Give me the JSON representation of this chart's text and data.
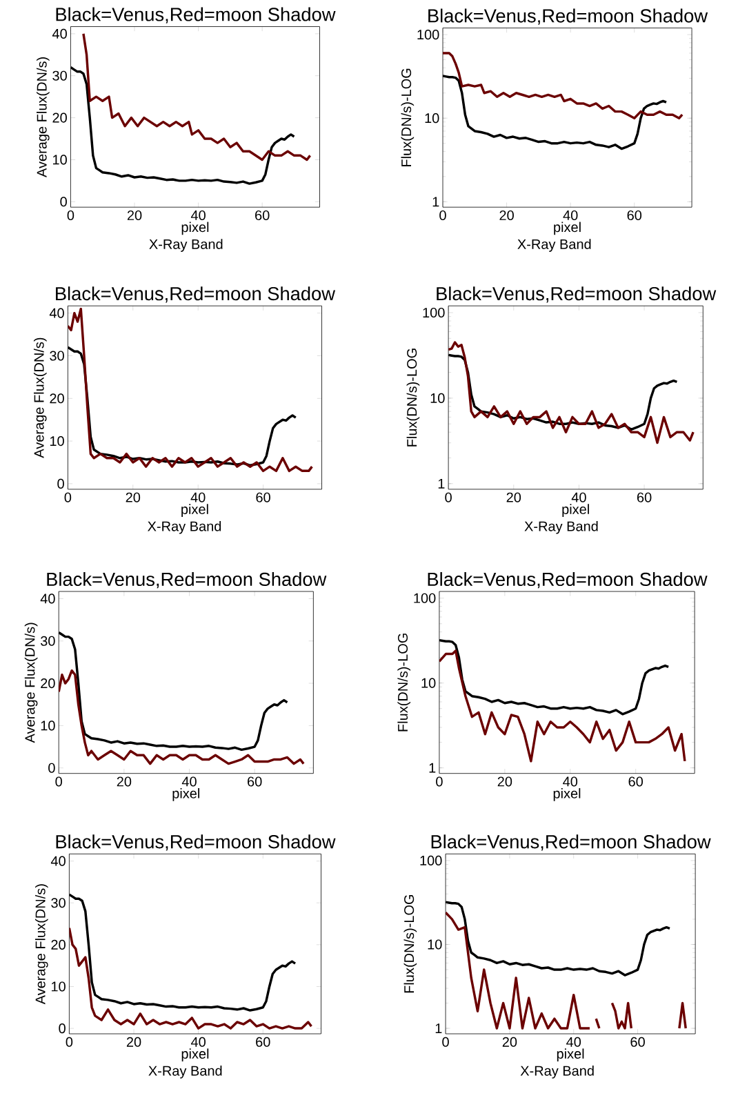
{
  "chart_data": [
    {
      "type": "line",
      "title": "Black=Venus,Red=moon Shadow",
      "xlabel": "pixel",
      "ylabel": "Average Flux(DN/s)",
      "annotations": [
        "X-Ray Band"
      ],
      "xlim": [
        0,
        78
      ],
      "ylim": [
        -1.3,
        41.7
      ],
      "xticks": [
        0,
        20,
        40,
        60
      ],
      "yticks": [
        0,
        10,
        20,
        30,
        40
      ],
      "series": [
        {
          "color": "#000000",
          "x": [
            0,
            1,
            2,
            3,
            4,
            5,
            6,
            7,
            8,
            9,
            10,
            12,
            14,
            16,
            18,
            20,
            22,
            24,
            26,
            28,
            30,
            32,
            34,
            36,
            38,
            40,
            42,
            44,
            46,
            48,
            50,
            52,
            54,
            56,
            58,
            60,
            61,
            62,
            63,
            64,
            65,
            66,
            67,
            68,
            69,
            70
          ],
          "values": [
            32,
            31.5,
            31,
            31,
            30.5,
            28,
            20,
            11,
            8,
            7.5,
            7,
            6.8,
            6.5,
            6,
            6.3,
            5.8,
            6,
            5.7,
            5.8,
            5.5,
            5.2,
            5.3,
            5,
            5,
            5.2,
            5,
            5.1,
            5,
            5.2,
            4.8,
            4.7,
            4.5,
            4.8,
            4.3,
            4.6,
            5,
            6.5,
            10,
            13,
            14,
            14.5,
            15,
            14.8,
            15.5,
            16,
            15.5
          ]
        },
        {
          "color": "#6b0000",
          "x": [
            4,
            5,
            6,
            8,
            10,
            12,
            13,
            15,
            17,
            19,
            21,
            23,
            25,
            27,
            29,
            31,
            33,
            35,
            37,
            38,
            40,
            42,
            44,
            46,
            48,
            50,
            52,
            54,
            56,
            58,
            60,
            62,
            64,
            66,
            68,
            70,
            72,
            74,
            75
          ],
          "values": [
            40,
            35,
            24,
            25,
            24,
            25,
            20,
            21,
            18,
            20,
            18,
            20,
            19,
            18,
            19,
            18,
            19,
            18,
            19,
            16,
            17,
            15,
            15,
            14,
            15,
            13,
            14,
            12,
            12,
            11,
            10,
            12,
            11,
            11,
            12,
            11,
            11,
            10,
            11
          ]
        }
      ]
    },
    {
      "type": "line",
      "title": "Black=Venus,Red=moon Shadow",
      "xlabel": "pixel",
      "ylabel": "Flux(DN/s)-LOG",
      "annotations": [
        "X-Ray Band"
      ],
      "log": true,
      "xlim": [
        0,
        78
      ],
      "ylim": [
        0.86,
        120
      ],
      "xticks": [
        0,
        20,
        40,
        60
      ],
      "yticks": [
        1,
        10,
        100
      ],
      "series": [
        {
          "color": "#000000",
          "x": [
            0,
            1,
            2,
            3,
            4,
            5,
            6,
            7,
            8,
            9,
            10,
            12,
            14,
            16,
            18,
            20,
            22,
            24,
            26,
            28,
            30,
            32,
            34,
            36,
            38,
            40,
            42,
            44,
            46,
            48,
            50,
            52,
            54,
            56,
            58,
            60,
            61,
            62,
            63,
            64,
            65,
            66,
            67,
            68,
            69,
            70
          ],
          "values": [
            32,
            31.5,
            31,
            31,
            30.5,
            28,
            20,
            11,
            8,
            7.5,
            7,
            6.8,
            6.5,
            6,
            6.3,
            5.8,
            6,
            5.7,
            5.8,
            5.5,
            5.2,
            5.3,
            5,
            5,
            5.2,
            5,
            5.1,
            5,
            5.2,
            4.8,
            4.7,
            4.5,
            4.8,
            4.3,
            4.6,
            5,
            6.5,
            10,
            13,
            14,
            14.5,
            15,
            14.8,
            15.5,
            16,
            15.5
          ]
        },
        {
          "color": "#6b0000",
          "x": [
            0,
            2,
            3,
            4,
            5,
            6,
            8,
            10,
            12,
            13,
            15,
            17,
            19,
            21,
            23,
            25,
            27,
            29,
            31,
            33,
            35,
            37,
            38,
            40,
            42,
            44,
            46,
            48,
            50,
            52,
            54,
            56,
            58,
            60,
            62,
            64,
            66,
            68,
            70,
            72,
            74,
            75
          ],
          "values": [
            60,
            60,
            55,
            45,
            35,
            24,
            25,
            24,
            25,
            20,
            21,
            18,
            20,
            18,
            20,
            19,
            18,
            19,
            18,
            19,
            18,
            19,
            16,
            17,
            15,
            15,
            14,
            15,
            13,
            14,
            12,
            12,
            11,
            10,
            12,
            11,
            11,
            12,
            11,
            11,
            10,
            11
          ]
        }
      ]
    },
    {
      "type": "line",
      "title": "Black=Venus,Red=moon Shadow",
      "xlabel": "pixel",
      "ylabel": "Average Flux(DN/s)",
      "annotations": [
        "X-Ray Band"
      ],
      "xlim": [
        0,
        78
      ],
      "ylim": [
        -1.3,
        41.7
      ],
      "xticks": [
        0,
        20,
        40,
        60
      ],
      "yticks": [
        0,
        10,
        20,
        30,
        40
      ],
      "series": [
        {
          "color": "#000000",
          "x": [
            0,
            1,
            2,
            3,
            4,
            5,
            6,
            7,
            8,
            9,
            10,
            12,
            14,
            16,
            18,
            20,
            22,
            24,
            26,
            28,
            30,
            32,
            34,
            36,
            38,
            40,
            42,
            44,
            46,
            48,
            50,
            52,
            54,
            56,
            58,
            60,
            61,
            62,
            63,
            64,
            65,
            66,
            67,
            68,
            69,
            70
          ],
          "values": [
            32,
            31.5,
            31,
            31,
            30.5,
            28,
            20,
            11,
            8,
            7.5,
            7,
            6.8,
            6.5,
            6,
            6.3,
            5.8,
            6,
            5.7,
            5.8,
            5.5,
            5.2,
            5.3,
            5,
            5,
            5.2,
            5,
            5.1,
            5,
            5.2,
            4.8,
            4.7,
            4.5,
            4.8,
            4.3,
            4.6,
            5,
            6.5,
            10,
            13,
            14,
            14.5,
            15,
            14.8,
            15.5,
            16,
            15.5
          ]
        },
        {
          "color": "#6b0000",
          "x": [
            0,
            1,
            2,
            3,
            4,
            5,
            6,
            7,
            8,
            10,
            12,
            14,
            16,
            18,
            20,
            22,
            24,
            26,
            28,
            30,
            32,
            34,
            36,
            38,
            40,
            42,
            44,
            46,
            48,
            50,
            52,
            54,
            56,
            58,
            60,
            62,
            64,
            66,
            68,
            70,
            72,
            74,
            75
          ],
          "values": [
            37,
            36,
            40,
            38,
            41,
            30,
            18,
            7,
            6,
            7,
            6,
            6,
            5,
            7,
            5,
            6,
            4,
            6,
            5,
            6,
            4,
            6,
            5,
            6,
            4,
            5,
            6,
            4,
            5,
            6,
            4,
            5,
            4,
            5,
            3,
            4,
            3,
            6,
            3,
            4,
            3,
            3,
            4
          ]
        }
      ]
    },
    {
      "type": "line",
      "title": "Black=Venus,Red=moon Shadow",
      "xlabel": "pixel",
      "ylabel": "Flux(DN/s)-LOG",
      "annotations": [
        "X-Ray Band"
      ],
      "log": true,
      "xlim": [
        0,
        78
      ],
      "ylim": [
        0.86,
        120
      ],
      "xticks": [
        0,
        20,
        40,
        60
      ],
      "yticks": [
        1,
        10,
        100
      ],
      "series": [
        {
          "color": "#000000",
          "x": [
            0,
            1,
            2,
            3,
            4,
            5,
            6,
            7,
            8,
            9,
            10,
            12,
            14,
            16,
            18,
            20,
            22,
            24,
            26,
            28,
            30,
            32,
            34,
            36,
            38,
            40,
            42,
            44,
            46,
            48,
            50,
            52,
            54,
            56,
            58,
            60,
            61,
            62,
            63,
            64,
            65,
            66,
            67,
            68,
            69,
            70
          ],
          "values": [
            32,
            31.5,
            31,
            31,
            30.5,
            28,
            20,
            11,
            8,
            7.5,
            7,
            6.8,
            6.5,
            6,
            6.3,
            5.8,
            6,
            5.7,
            5.8,
            5.5,
            5.2,
            5.3,
            5,
            5,
            5.2,
            5,
            5.1,
            5,
            5.2,
            4.8,
            4.7,
            4.5,
            4.8,
            4.3,
            4.6,
            5,
            6.5,
            10,
            13,
            14,
            14.5,
            15,
            14.8,
            15.5,
            16,
            15.5
          ]
        },
        {
          "color": "#6b0000",
          "x": [
            0,
            1,
            2,
            3,
            4,
            5,
            6,
            7,
            8,
            10,
            12,
            14,
            16,
            18,
            20,
            22,
            24,
            26,
            28,
            30,
            32,
            34,
            36,
            38,
            40,
            42,
            44,
            46,
            48,
            50,
            52,
            54,
            56,
            58,
            60,
            62,
            64,
            66,
            68,
            70,
            72,
            74,
            75
          ],
          "values": [
            37,
            38,
            45,
            40,
            42,
            30,
            18,
            7,
            6,
            7,
            6,
            8,
            6,
            7,
            5,
            7,
            5,
            6,
            6,
            7,
            4.5,
            6,
            4,
            6,
            5,
            5,
            7,
            4.5,
            5,
            6.5,
            4.5,
            5,
            4,
            4,
            3.5,
            6,
            3,
            6,
            3.5,
            4,
            4,
            3.2,
            4
          ]
        }
      ]
    },
    {
      "type": "line",
      "title": "Black=Venus,Red=moon Shadow",
      "xlabel": "pixel",
      "ylabel": "Average Flux(DN/s)",
      "xlim": [
        0,
        78
      ],
      "ylim": [
        -1.3,
        41.7
      ],
      "xticks": [
        0,
        20,
        40,
        60
      ],
      "yticks": [
        0,
        10,
        20,
        30,
        40
      ],
      "series": [
        {
          "color": "#000000",
          "x": [
            0,
            1,
            2,
            3,
            4,
            5,
            6,
            7,
            8,
            9,
            10,
            12,
            14,
            16,
            18,
            20,
            22,
            24,
            26,
            28,
            30,
            32,
            34,
            36,
            38,
            40,
            42,
            44,
            46,
            48,
            50,
            52,
            54,
            56,
            58,
            60,
            61,
            62,
            63,
            64,
            65,
            66,
            67,
            68,
            69,
            70
          ],
          "values": [
            32,
            31.5,
            31,
            31,
            30.5,
            28,
            20,
            11,
            8,
            7.5,
            7,
            6.8,
            6.5,
            6,
            6.3,
            5.8,
            6,
            5.7,
            5.8,
            5.5,
            5.2,
            5.3,
            5,
            5,
            5.2,
            5,
            5.1,
            5,
            5.2,
            4.8,
            4.7,
            4.5,
            4.8,
            4.3,
            4.6,
            5,
            6.5,
            10,
            13,
            14,
            14.5,
            15,
            14.8,
            15.5,
            16,
            15.5
          ]
        },
        {
          "color": "#6b0000",
          "x": [
            0,
            1,
            2,
            3,
            4,
            5,
            6,
            7,
            8,
            9,
            10,
            12,
            14,
            16,
            18,
            20,
            22,
            24,
            26,
            28,
            30,
            32,
            34,
            36,
            38,
            40,
            42,
            44,
            46,
            48,
            50,
            52,
            54,
            56,
            58,
            60,
            62,
            64,
            66,
            68,
            70,
            72,
            74,
            75
          ],
          "values": [
            18,
            22,
            20,
            21,
            23,
            22,
            15,
            10,
            6,
            3,
            4,
            2,
            3,
            4,
            3,
            2,
            4,
            3,
            3,
            1,
            3,
            2,
            3,
            3,
            2,
            3,
            3,
            2,
            2,
            3,
            2,
            1,
            1.5,
            2,
            3,
            1.5,
            1.5,
            1.5,
            2,
            2,
            2.5,
            1,
            2,
            1
          ]
        }
      ]
    },
    {
      "type": "line",
      "title": "Black=Venus,Red=moon Shadow",
      "xlabel": "pixel",
      "ylabel": "Flux(DN/s)-LOG",
      "log": true,
      "xlim": [
        0,
        78
      ],
      "ylim": [
        0.86,
        120
      ],
      "xticks": [
        0,
        20,
        40,
        60
      ],
      "yticks": [
        1,
        10,
        100
      ],
      "series": [
        {
          "color": "#000000",
          "x": [
            0,
            1,
            2,
            3,
            4,
            5,
            6,
            7,
            8,
            9,
            10,
            12,
            14,
            16,
            18,
            20,
            22,
            24,
            26,
            28,
            30,
            32,
            34,
            36,
            38,
            40,
            42,
            44,
            46,
            48,
            50,
            52,
            54,
            56,
            58,
            60,
            61,
            62,
            63,
            64,
            65,
            66,
            67,
            68,
            69,
            70
          ],
          "values": [
            32,
            31.5,
            31,
            31,
            30.5,
            28,
            20,
            11,
            8,
            7.5,
            7,
            6.8,
            6.5,
            6,
            6.3,
            5.8,
            6,
            5.7,
            5.8,
            5.5,
            5.2,
            5.3,
            5,
            5,
            5.2,
            5,
            5.1,
            5,
            5.2,
            4.8,
            4.7,
            4.5,
            4.8,
            4.3,
            4.6,
            5,
            6.5,
            10,
            13,
            14,
            14.5,
            15,
            14.8,
            15.5,
            16,
            15.5
          ]
        },
        {
          "color": "#6b0000",
          "x": [
            0,
            2,
            4,
            5,
            6,
            8,
            10,
            12,
            14,
            16,
            18,
            20,
            22,
            24,
            26,
            28,
            30,
            32,
            34,
            36,
            38,
            40,
            42,
            44,
            46,
            48,
            50,
            52,
            54,
            56,
            58,
            60,
            62,
            64,
            66,
            68,
            70,
            72,
            74,
            75
          ],
          "values": [
            18,
            22,
            22,
            24,
            15,
            7,
            4,
            4.5,
            2.5,
            4.5,
            3,
            2.5,
            4.2,
            4,
            2.5,
            1.2,
            3.5,
            2.5,
            3.5,
            3,
            3,
            3.5,
            3,
            2.5,
            2,
            3.5,
            2.2,
            2.8,
            1.6,
            2,
            3.5,
            2,
            2,
            2,
            2.2,
            2.5,
            3,
            1.6,
            2.5,
            1.2
          ]
        }
      ]
    },
    {
      "type": "line",
      "title": "Black=Venus,Red=moon Shadow",
      "xlabel": "pixel",
      "ylabel": "Average Flux(DN/s)",
      "annotations": [
        "X-Ray Band"
      ],
      "xlim": [
        0,
        78
      ],
      "ylim": [
        -1.3,
        41.7
      ],
      "xticks": [
        0,
        20,
        40,
        60
      ],
      "yticks": [
        0,
        10,
        20,
        30,
        40
      ],
      "series": [
        {
          "color": "#000000",
          "x": [
            0,
            1,
            2,
            3,
            4,
            5,
            6,
            7,
            8,
            9,
            10,
            12,
            14,
            16,
            18,
            20,
            22,
            24,
            26,
            28,
            30,
            32,
            34,
            36,
            38,
            40,
            42,
            44,
            46,
            48,
            50,
            52,
            54,
            56,
            58,
            60,
            61,
            62,
            63,
            64,
            65,
            66,
            67,
            68,
            69,
            70
          ],
          "values": [
            32,
            31.5,
            31,
            31,
            30.5,
            28,
            20,
            11,
            8,
            7.5,
            7,
            6.8,
            6.5,
            6,
            6.3,
            5.8,
            6,
            5.7,
            5.8,
            5.5,
            5.2,
            5.3,
            5,
            5,
            5.2,
            5,
            5.1,
            5,
            5.2,
            4.8,
            4.7,
            4.5,
            4.8,
            4.3,
            4.6,
            5,
            6.5,
            10,
            13,
            14,
            14.5,
            15,
            14.8,
            15.5,
            16,
            15.5
          ]
        },
        {
          "color": "#6b0000",
          "x": [
            0,
            1,
            2,
            3,
            4,
            5,
            6,
            7,
            8,
            10,
            12,
            14,
            16,
            18,
            20,
            22,
            24,
            26,
            28,
            30,
            32,
            34,
            36,
            38,
            40,
            42,
            44,
            46,
            48,
            50,
            52,
            54,
            56,
            58,
            60,
            62,
            64,
            66,
            68,
            70,
            72,
            74,
            75
          ],
          "values": [
            24,
            20,
            19,
            15,
            16,
            17,
            12,
            5,
            3,
            2,
            4.5,
            2,
            1,
            2,
            1,
            3.5,
            1,
            2,
            1,
            1.5,
            1,
            1.5,
            1,
            2.5,
            0,
            1,
            1,
            0.5,
            1,
            0,
            1.5,
            1,
            2,
            0.5,
            1,
            0,
            0.5,
            0,
            0.5,
            0,
            0,
            1.5,
            0.5
          ]
        }
      ]
    },
    {
      "type": "line",
      "title": "Black=Venus,Red=moon Shadow",
      "xlabel": "pixel",
      "ylabel": "Flux(DN/s)-LOG",
      "annotations": [
        "X-Ray Band"
      ],
      "log": true,
      "xlim": [
        0,
        78
      ],
      "ylim": [
        0.86,
        120
      ],
      "xticks": [
        0,
        20,
        40,
        60
      ],
      "yticks": [
        1,
        10,
        100
      ],
      "series": [
        {
          "color": "#000000",
          "x": [
            0,
            1,
            2,
            3,
            4,
            5,
            6,
            7,
            8,
            9,
            10,
            12,
            14,
            16,
            18,
            20,
            22,
            24,
            26,
            28,
            30,
            32,
            34,
            36,
            38,
            40,
            42,
            44,
            46,
            48,
            50,
            52,
            54,
            56,
            58,
            60,
            61,
            62,
            63,
            64,
            65,
            66,
            67,
            68,
            69,
            70
          ],
          "values": [
            32,
            31.5,
            31,
            31,
            30.5,
            28,
            20,
            11,
            8,
            7.5,
            7,
            6.8,
            6.5,
            6,
            6.3,
            5.8,
            6,
            5.7,
            5.8,
            5.5,
            5.2,
            5.3,
            5,
            5,
            5.2,
            5,
            5.1,
            5,
            5.2,
            4.8,
            4.7,
            4.5,
            4.8,
            4.3,
            4.6,
            5,
            6.5,
            10,
            13,
            14,
            14.5,
            15,
            14.8,
            15.5,
            16,
            15.5
          ]
        },
        {
          "color": "#6b0000",
          "x": [
            0,
            2,
            4,
            6,
            8,
            10,
            12,
            14,
            16,
            18,
            20,
            22,
            24,
            26,
            28,
            30,
            32,
            34,
            36,
            38,
            40,
            42,
            44,
            45,
            46,
            47,
            48,
            50,
            52,
            53,
            54,
            55,
            56,
            57,
            58,
            60,
            62,
            64,
            66,
            68,
            70,
            72,
            73,
            74,
            75
          ],
          "values": [
            24,
            20,
            15,
            16,
            4,
            1.6,
            5,
            2,
            1,
            2,
            1,
            4,
            1,
            2.3,
            1,
            1.5,
            1,
            1.3,
            1,
            1,
            2.5,
            1,
            1,
            1,
            null,
            1.3,
            1,
            null,
            2,
            1.6,
            1,
            1.2,
            1,
            2,
            1,
            null,
            null,
            null,
            null,
            null,
            null,
            null,
            1,
            2,
            1
          ]
        }
      ]
    }
  ]
}
